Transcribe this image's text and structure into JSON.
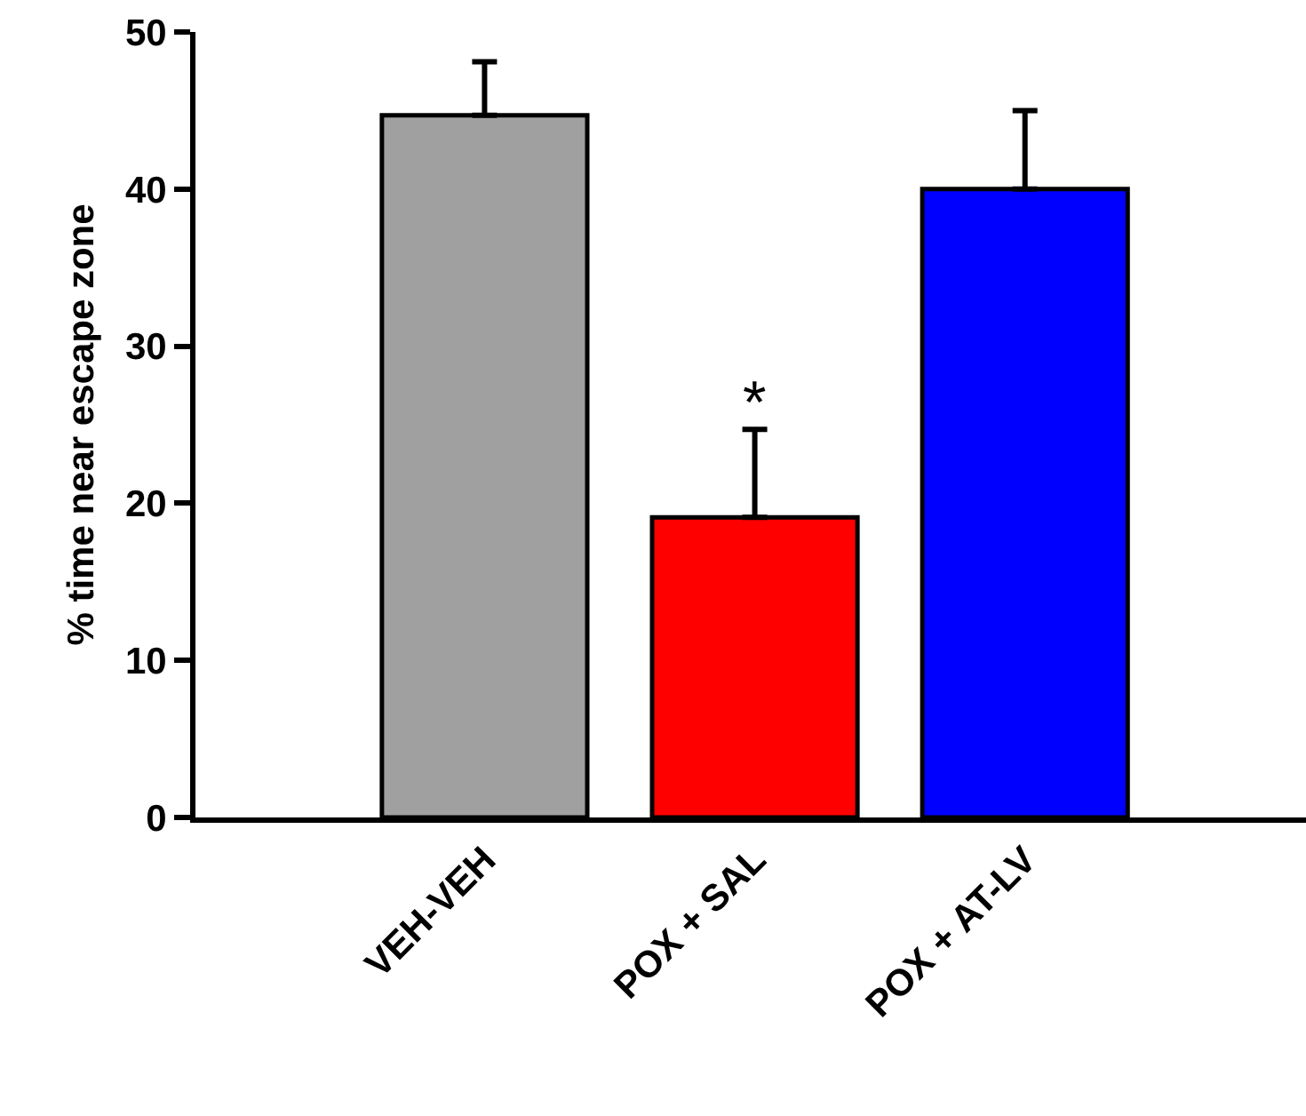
{
  "chart_data": {
    "type": "bar",
    "ylabel": "% time near escape zone",
    "categories": [
      "VEH-VEH",
      "POX + SAL",
      "POX + AT-LV"
    ],
    "values": [
      44.7,
      19.1,
      40.0
    ],
    "colors": [
      "#a0a0a0",
      "#ff0000",
      "#0000ff"
    ],
    "errors": [
      [
        44.7,
        48.1
      ],
      [
        19.1,
        24.7
      ],
      [
        40.0,
        45.0
      ]
    ],
    "ylim": [
      0,
      50
    ],
    "yticks": [
      0,
      10,
      20,
      30,
      40,
      50
    ],
    "annotations": [
      "*"
    ]
  }
}
